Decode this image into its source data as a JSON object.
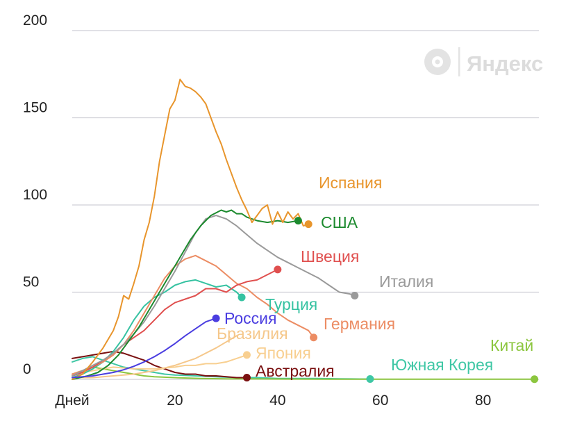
{
  "chart_data": {
    "type": "line",
    "title": "",
    "xlabel": "",
    "ylabel": "",
    "xlim": [
      0,
      91
    ],
    "ylim": [
      0,
      200
    ],
    "x_ticks": [
      {
        "value": 0,
        "label": "Дней"
      },
      {
        "value": 20,
        "label": "20"
      },
      {
        "value": 40,
        "label": "40"
      },
      {
        "value": 60,
        "label": "60"
      },
      {
        "value": 80,
        "label": "80"
      }
    ],
    "y_ticks": [
      {
        "value": 0,
        "label": "0"
      },
      {
        "value": 50,
        "label": "50"
      },
      {
        "value": 100,
        "label": "100"
      },
      {
        "value": 150,
        "label": "150"
      },
      {
        "value": 200,
        "label": "200"
      }
    ],
    "grid": true,
    "watermark": "Яндекс",
    "series": [
      {
        "name": "Испания",
        "color": "#e8952c",
        "width": 2,
        "marker": true,
        "x": [
          0,
          2,
          4,
          6,
          8,
          9,
          10,
          11,
          12,
          13,
          14,
          15,
          16,
          17,
          18,
          19,
          20,
          21,
          22,
          23,
          24,
          25,
          26,
          27,
          28,
          29,
          30,
          31,
          32,
          33,
          34,
          35,
          36,
          37,
          38,
          39,
          40,
          41,
          42,
          43,
          44,
          45,
          46
        ],
        "y": [
          0,
          3,
          10,
          18,
          28,
          36,
          48,
          46,
          55,
          65,
          80,
          90,
          105,
          125,
          140,
          155,
          160,
          172,
          168,
          167,
          165,
          162,
          158,
          150,
          142,
          135,
          126,
          118,
          110,
          103,
          97,
          90,
          94,
          98,
          100,
          89,
          96,
          90,
          96,
          92,
          95,
          88,
          89
        ]
      },
      {
        "name": "США",
        "color": "#1c8a2e",
        "width": 2,
        "marker": true,
        "x": [
          0,
          3,
          5,
          7,
          9,
          11,
          13,
          15,
          17,
          19,
          21,
          23,
          25,
          27,
          29,
          30,
          31,
          32,
          33,
          34,
          35,
          36,
          38,
          40,
          42,
          44
        ],
        "y": [
          0,
          2,
          4,
          8,
          14,
          22,
          30,
          40,
          50,
          60,
          70,
          80,
          88,
          94,
          97,
          96,
          97,
          95,
          95,
          93,
          92,
          91,
          90,
          91,
          90,
          91
        ]
      },
      {
        "name": "Италия",
        "color": "#9a9a9a",
        "width": 2,
        "marker": true,
        "x": [
          0,
          2,
          4,
          6,
          8,
          10,
          12,
          14,
          16,
          18,
          20,
          22,
          24,
          26,
          28,
          30,
          32,
          34,
          36,
          38,
          40,
          42,
          44,
          46,
          48,
          50,
          52,
          54,
          55
        ],
        "y": [
          2,
          5,
          8,
          11,
          15,
          20,
          26,
          33,
          42,
          52,
          62,
          73,
          84,
          92,
          94,
          92,
          88,
          83,
          78,
          74,
          70,
          67,
          64,
          61,
          58,
          54,
          50,
          49,
          48
        ]
      },
      {
        "name": "Швеция",
        "color": "#e0504f",
        "width": 2,
        "marker": true,
        "x": [
          0,
          2,
          4,
          6,
          8,
          10,
          12,
          14,
          16,
          18,
          20,
          22,
          24,
          26,
          28,
          30,
          32,
          34,
          36,
          38,
          40
        ],
        "y": [
          2,
          4,
          7,
          11,
          15,
          20,
          24,
          28,
          34,
          40,
          44,
          46,
          48,
          52,
          52,
          50,
          54,
          56,
          57,
          60,
          63
        ]
      },
      {
        "name": "Германия",
        "color": "#ec8c63",
        "width": 2,
        "marker": true,
        "x": [
          0,
          2,
          4,
          6,
          8,
          10,
          12,
          14,
          16,
          18,
          20,
          22,
          24,
          26,
          28,
          30,
          32,
          34,
          36,
          38,
          40,
          42,
          44,
          46,
          47
        ],
        "y": [
          3,
          5,
          7,
          10,
          14,
          20,
          28,
          38,
          48,
          58,
          65,
          69,
          71,
          68,
          65,
          60,
          55,
          52,
          47,
          43,
          38,
          34,
          31,
          28,
          24
        ]
      },
      {
        "name": "Турция",
        "color": "#35c2a1",
        "width": 2,
        "marker": true,
        "x": [
          0,
          2,
          4,
          6,
          8,
          10,
          12,
          14,
          16,
          18,
          20,
          22,
          24,
          26,
          28,
          30,
          31,
          32,
          33
        ],
        "y": [
          1,
          3,
          6,
          10,
          16,
          24,
          34,
          42,
          47,
          50,
          54,
          56,
          57,
          55,
          53,
          54,
          52,
          50,
          47
        ]
      },
      {
        "name": "Россия",
        "color": "#4a3de0",
        "width": 7,
        "marker": true,
        "x": [
          0,
          2,
          4,
          6,
          8,
          10,
          12,
          14,
          16,
          18,
          20,
          22,
          24,
          26,
          28
        ],
        "y": [
          1,
          1.5,
          2,
          3,
          4,
          5.5,
          7.5,
          10,
          13,
          16.5,
          20.5,
          25,
          29,
          33,
          35
        ]
      },
      {
        "name": "Бразилия",
        "color": "#f5c78a",
        "width": 2,
        "marker": false,
        "x": [
          0,
          4,
          8,
          12,
          16,
          20,
          24,
          28,
          32
        ],
        "y": [
          1,
          1,
          2,
          3,
          5,
          8,
          12,
          18,
          25
        ]
      },
      {
        "name": "Япония",
        "color": "#f8cf90",
        "width": 2,
        "marker": true,
        "x": [
          0,
          4,
          8,
          12,
          16,
          20,
          22,
          24,
          26,
          28,
          30,
          32,
          33,
          34
        ],
        "y": [
          3,
          5,
          7,
          6,
          6,
          7,
          8,
          8,
          9,
          9,
          10,
          12,
          13,
          14
        ]
      },
      {
        "name": "Австралия",
        "color": "#7a1010",
        "width": 2,
        "marker": true,
        "x": [
          0,
          2,
          4,
          6,
          8,
          10,
          12,
          14,
          16,
          18,
          20,
          22,
          24,
          26,
          28,
          30,
          32,
          34
        ],
        "y": [
          12,
          13,
          14,
          15,
          16,
          15,
          13,
          11,
          8,
          6,
          4,
          3,
          3,
          2,
          2,
          1.5,
          1,
          1
        ]
      },
      {
        "name": "Южная Корея",
        "color": "#3fc7a5",
        "width": 2,
        "marker": true,
        "x": [
          0,
          2,
          4,
          6,
          8,
          10,
          12,
          14,
          16,
          18,
          20,
          24,
          28,
          32,
          36,
          40,
          44,
          48,
          52,
          56,
          58
        ],
        "y": [
          10,
          12,
          13,
          11,
          9,
          7,
          6,
          5,
          4,
          3,
          2.5,
          2,
          1.5,
          1,
          1,
          0.5,
          0.5,
          0.5,
          0.3,
          0.2,
          0.2
        ]
      },
      {
        "name": "Китай",
        "color": "#8cc63f",
        "width": 2,
        "marker": true,
        "x": [
          0,
          2,
          4,
          6,
          8,
          10,
          12,
          14,
          16,
          20,
          25,
          30,
          40,
          50,
          60,
          70,
          80,
          90
        ],
        "y": [
          3,
          5,
          7,
          6,
          5,
          4,
          3,
          2,
          1.5,
          1,
          0.5,
          0.3,
          0.2,
          0.1,
          0.1,
          0.1,
          0.1,
          0.1
        ]
      }
    ]
  }
}
